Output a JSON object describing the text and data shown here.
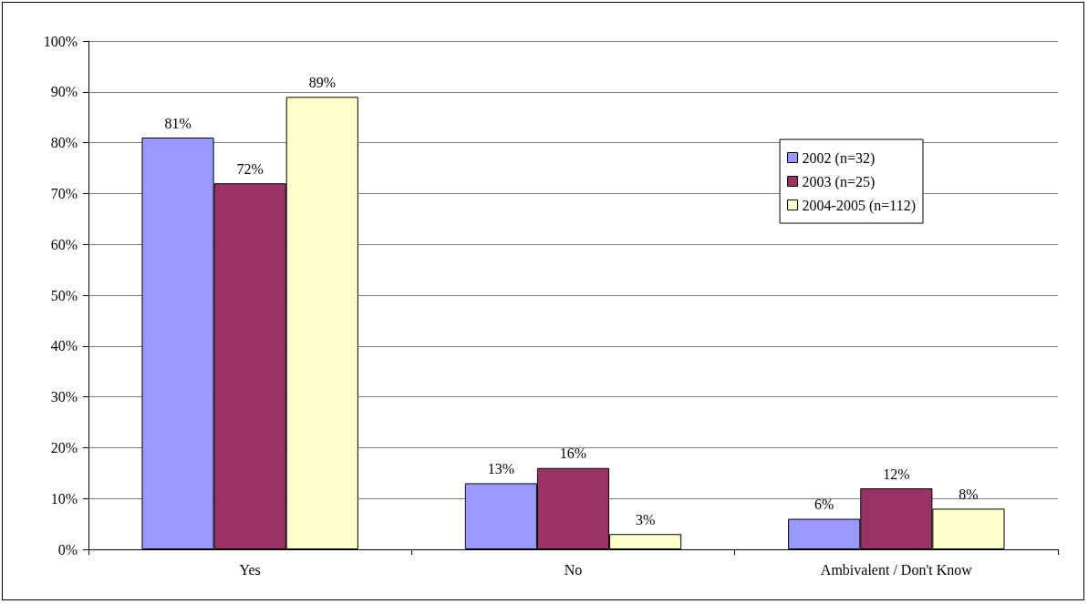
{
  "chart_data": {
    "type": "bar",
    "categories": [
      "Yes",
      "No",
      "Ambivalent / Don't Know"
    ],
    "series": [
      {
        "name": "2002 (n=32)",
        "color": "#9999ff",
        "values": [
          81,
          13,
          6
        ],
        "value_labels": [
          "81%",
          "13%",
          "6%"
        ]
      },
      {
        "name": "2003 (n=25)",
        "color": "#993366",
        "values": [
          72,
          16,
          12
        ],
        "value_labels": [
          "72%",
          "16%",
          "12%"
        ]
      },
      {
        "name": "2004-2005 (n=112)",
        "color": "#ffffcc",
        "values": [
          89,
          3,
          8
        ],
        "value_labels": [
          "89%",
          "3%",
          "8%"
        ]
      }
    ],
    "ylim": [
      0,
      100
    ],
    "yticks": [
      {
        "value": 0,
        "label": "0%"
      },
      {
        "value": 10,
        "label": "10%"
      },
      {
        "value": 20,
        "label": "20%"
      },
      {
        "value": 30,
        "label": "30%"
      },
      {
        "value": 40,
        "label": "40%"
      },
      {
        "value": 50,
        "label": "50%"
      },
      {
        "value": 60,
        "label": "60%"
      },
      {
        "value": 70,
        "label": "70%"
      },
      {
        "value": 80,
        "label": "80%"
      },
      {
        "value": 90,
        "label": "90%"
      },
      {
        "value": 100,
        "label": "100%"
      }
    ],
    "grid": "y",
    "legend": "right"
  }
}
